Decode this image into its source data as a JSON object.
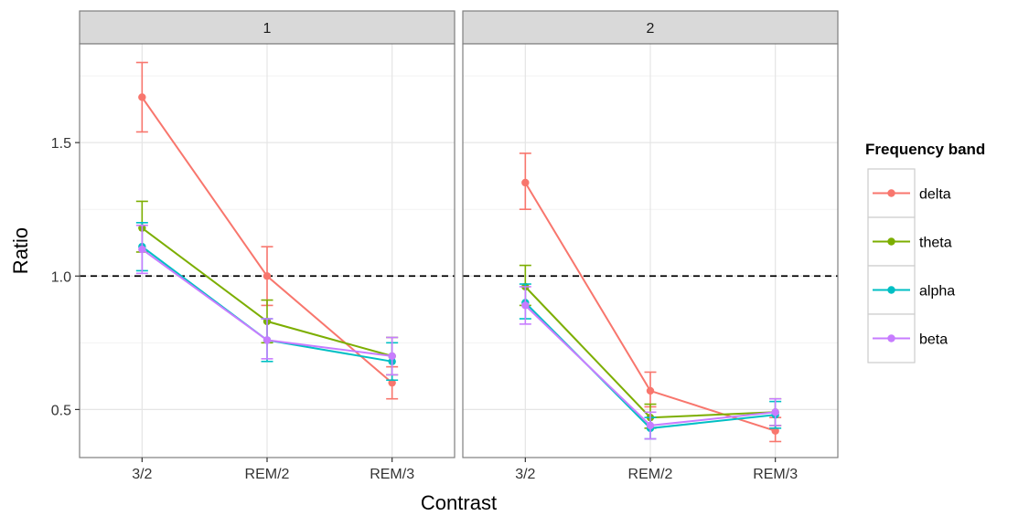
{
  "chart_data": {
    "type": "line",
    "xlabel": "Contrast",
    "ylabel": "Ratio",
    "categories": [
      "3/2",
      "REM/2",
      "REM/3"
    ],
    "ylim": [
      0.32,
      1.87
    ],
    "y_ticks": [
      0.5,
      1.0,
      1.5
    ],
    "y_tick_labels": [
      "0.5",
      "1.0",
      "1.5"
    ],
    "reference_line": 1.0,
    "grid": true,
    "legend": {
      "title": "Frequency band",
      "position": "right",
      "entries": [
        "delta",
        "theta",
        "alpha",
        "beta"
      ]
    },
    "colors": {
      "delta": "#F8766D",
      "theta": "#7CAE00",
      "alpha": "#00BFC4",
      "beta": "#C77CFF"
    },
    "panels": [
      {
        "label": "1",
        "series": [
          {
            "name": "delta",
            "values": [
              1.67,
              1.0,
              0.6
            ],
            "lower": [
              1.54,
              0.89,
              0.54
            ],
            "upper": [
              1.8,
              1.11,
              0.66
            ]
          },
          {
            "name": "theta",
            "values": [
              1.18,
              0.83,
              0.7
            ],
            "lower": [
              1.09,
              0.75,
              0.63
            ],
            "upper": [
              1.28,
              0.91,
              0.77
            ]
          },
          {
            "name": "alpha",
            "values": [
              1.11,
              0.76,
              0.68
            ],
            "lower": [
              1.02,
              0.68,
              0.61
            ],
            "upper": [
              1.2,
              0.84,
              0.75
            ]
          },
          {
            "name": "beta",
            "values": [
              1.1,
              0.76,
              0.7
            ],
            "lower": [
              1.01,
              0.69,
              0.63
            ],
            "upper": [
              1.19,
              0.84,
              0.77
            ]
          }
        ]
      },
      {
        "label": "2",
        "series": [
          {
            "name": "delta",
            "values": [
              1.35,
              0.57,
              0.42
            ],
            "lower": [
              1.25,
              0.51,
              0.38
            ],
            "upper": [
              1.46,
              0.64,
              0.47
            ]
          },
          {
            "name": "theta",
            "values": [
              0.96,
              0.47,
              0.49
            ],
            "lower": [
              0.89,
              0.43,
              0.44
            ],
            "upper": [
              1.04,
              0.52,
              0.54
            ]
          },
          {
            "name": "alpha",
            "values": [
              0.9,
              0.43,
              0.48
            ],
            "lower": [
              0.84,
              0.39,
              0.43
            ],
            "upper": [
              0.97,
              0.47,
              0.53
            ]
          },
          {
            "name": "beta",
            "values": [
              0.89,
              0.44,
              0.49
            ],
            "lower": [
              0.82,
              0.39,
              0.44
            ],
            "upper": [
              0.96,
              0.49,
              0.54
            ]
          }
        ]
      }
    ]
  }
}
